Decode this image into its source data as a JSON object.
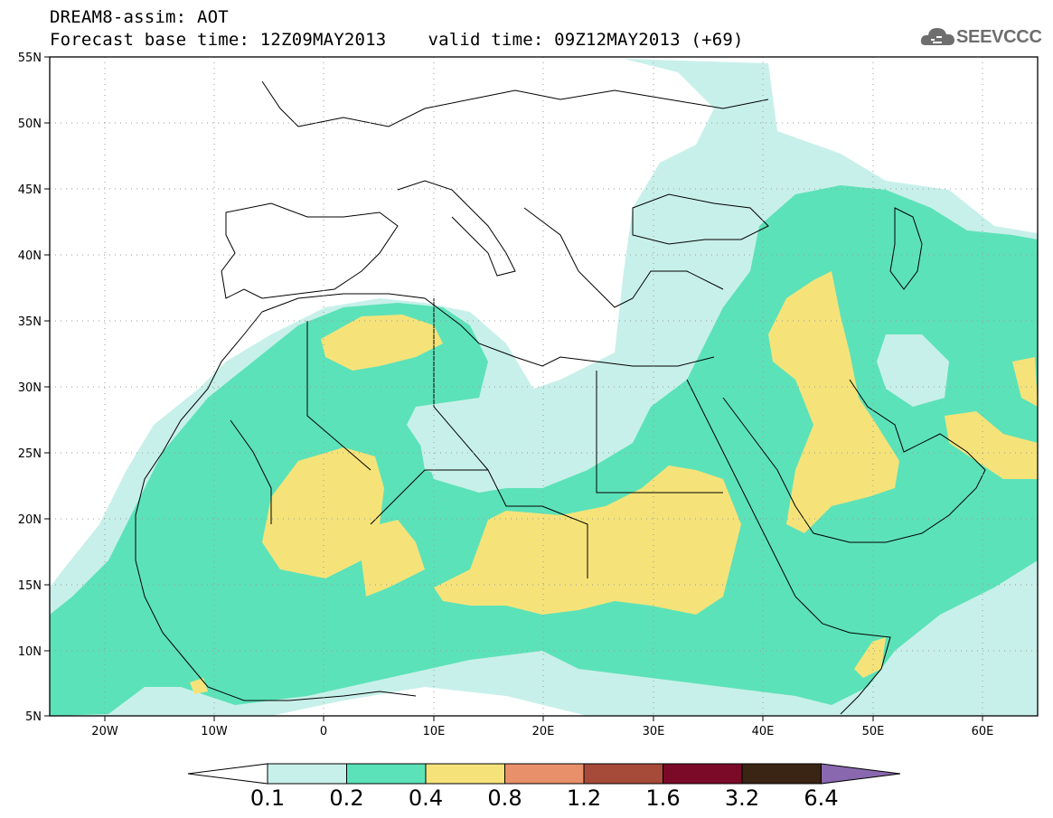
{
  "header": {
    "title": "DREAM8-assim: AOT",
    "base_time": "Forecast base time: 12Z09MAY2013",
    "valid_time": "valid time: 09Z12MAY2013 (+69)",
    "logo_text": "SEEVCCC"
  },
  "map": {
    "lon_range": [
      -25,
      65
    ],
    "lat_range": [
      5,
      55
    ],
    "lat_labels": [
      "55N",
      "50N",
      "45N",
      "40N",
      "35N",
      "30N",
      "25N",
      "20N",
      "15N",
      "10N",
      "5N"
    ],
    "lon_labels": [
      "20W",
      "10W",
      "0",
      "10E",
      "20E",
      "30E",
      "40E",
      "50E",
      "60E"
    ],
    "grid": "dotted"
  },
  "colorbar": {
    "labels": [
      "0.1",
      "0.2",
      "0.4",
      "0.8",
      "1.2",
      "1.6",
      "3.2",
      "6.4"
    ],
    "colors": [
      "#ffffff",
      "#c8f0ea",
      "#5ce2b8",
      "#f5e37a",
      "#e8906a",
      "#a64a3a",
      "#7a0a28",
      "#3a2414",
      "#8a68b0"
    ]
  }
}
